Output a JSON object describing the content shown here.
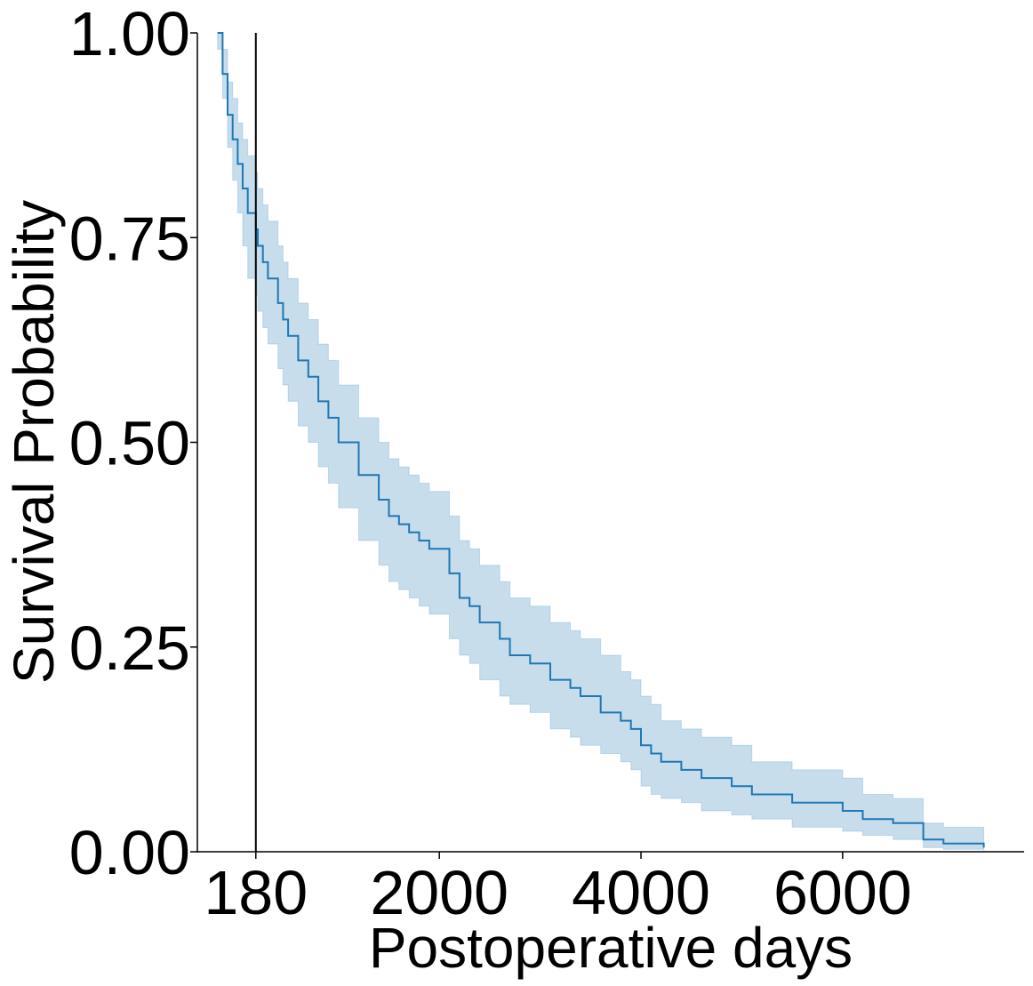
{
  "chart_data": {
    "type": "line",
    "title": "",
    "xlabel": "Postoperative days",
    "ylabel": "Survival Probability",
    "xlim": [
      -400,
      7800
    ],
    "ylim": [
      0,
      1
    ],
    "x_ticks": [
      180,
      2000,
      4000,
      6000
    ],
    "x_tick_labels": [
      "180",
      "2000",
      "4000",
      "6000"
    ],
    "y_ticks": [
      0,
      0.25,
      0.5,
      0.75,
      1.0
    ],
    "y_tick_labels": [
      "0.00",
      "0.25",
      "0.50",
      "0.75",
      "1.00"
    ],
    "grid": false,
    "reference_line_x": 180,
    "colors": {
      "line": "#1f77b4",
      "band": "#1f77b4",
      "axis": "#000000",
      "reference_line": "#000000"
    },
    "series": [
      {
        "type": "step",
        "x": [
          -200,
          -150,
          -100,
          -50,
          0,
          50,
          100,
          180,
          200,
          250,
          300,
          400,
          450,
          500,
          600,
          700,
          800,
          900,
          1000,
          1200,
          1400,
          1500,
          1600,
          1700,
          1800,
          1900,
          2100,
          2200,
          2300,
          2400,
          2600,
          2700,
          2900,
          3100,
          3300,
          3400,
          3600,
          3800,
          3900,
          4000,
          4100,
          4200,
          4400,
          4600,
          4900,
          5100,
          5500,
          6000,
          6200,
          6500,
          6800,
          7000,
          7400
        ],
        "y": [
          1.0,
          0.95,
          0.9,
          0.87,
          0.84,
          0.81,
          0.78,
          0.76,
          0.74,
          0.72,
          0.7,
          0.67,
          0.65,
          0.63,
          0.6,
          0.58,
          0.55,
          0.53,
          0.5,
          0.46,
          0.43,
          0.41,
          0.4,
          0.39,
          0.38,
          0.37,
          0.34,
          0.31,
          0.3,
          0.28,
          0.26,
          0.24,
          0.23,
          0.21,
          0.2,
          0.19,
          0.17,
          0.16,
          0.15,
          0.13,
          0.12,
          0.11,
          0.1,
          0.09,
          0.08,
          0.07,
          0.06,
          0.05,
          0.04,
          0.035,
          0.015,
          0.01,
          0.005
        ],
        "ci_lower": [
          0.98,
          0.92,
          0.86,
          0.82,
          0.78,
          0.74,
          0.7,
          0.68,
          0.66,
          0.64,
          0.62,
          0.59,
          0.57,
          0.55,
          0.52,
          0.5,
          0.47,
          0.45,
          0.42,
          0.38,
          0.35,
          0.33,
          0.32,
          0.31,
          0.3,
          0.29,
          0.26,
          0.24,
          0.23,
          0.21,
          0.19,
          0.18,
          0.17,
          0.15,
          0.14,
          0.13,
          0.12,
          0.11,
          0.1,
          0.08,
          0.07,
          0.065,
          0.06,
          0.05,
          0.045,
          0.04,
          0.03,
          0.025,
          0.02,
          0.015,
          0.005,
          0.003,
          0.001
        ],
        "ci_upper": [
          1.0,
          0.98,
          0.94,
          0.92,
          0.89,
          0.87,
          0.85,
          0.83,
          0.81,
          0.79,
          0.77,
          0.74,
          0.72,
          0.7,
          0.67,
          0.65,
          0.62,
          0.6,
          0.57,
          0.53,
          0.5,
          0.48,
          0.47,
          0.46,
          0.45,
          0.44,
          0.41,
          0.38,
          0.37,
          0.35,
          0.33,
          0.31,
          0.3,
          0.28,
          0.27,
          0.26,
          0.24,
          0.22,
          0.21,
          0.19,
          0.18,
          0.16,
          0.15,
          0.14,
          0.13,
          0.11,
          0.1,
          0.09,
          0.07,
          0.065,
          0.035,
          0.03,
          0.025
        ]
      }
    ]
  }
}
